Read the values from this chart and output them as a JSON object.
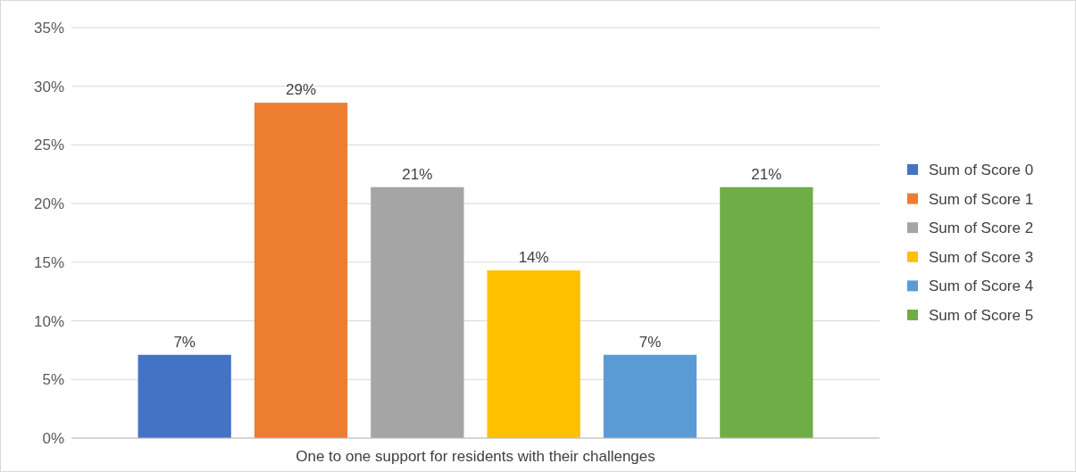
{
  "chart_data": {
    "type": "bar",
    "categories": [
      "One to one support for residents with their challenges"
    ],
    "series": [
      {
        "name": "Sum of Score 0",
        "color": "#4472c4",
        "values": [
          7.1
        ],
        "value_labels": [
          "7%"
        ]
      },
      {
        "name": "Sum of Score 1",
        "color": "#ed7d31",
        "values": [
          28.6
        ],
        "value_labels": [
          "29%"
        ]
      },
      {
        "name": "Sum of Score 2",
        "color": "#a5a5a5",
        "values": [
          21.4
        ],
        "value_labels": [
          "21%"
        ]
      },
      {
        "name": "Sum of Score 3",
        "color": "#ffc000",
        "values": [
          14.3
        ],
        "value_labels": [
          "14%"
        ]
      },
      {
        "name": "Sum of Score 4",
        "color": "#5b9bd5",
        "values": [
          7.1
        ],
        "value_labels": [
          "7%"
        ]
      },
      {
        "name": "Sum of Score 5",
        "color": "#70ad47",
        "values": [
          21.4
        ],
        "value_labels": [
          "21%"
        ]
      }
    ],
    "ylim": [
      0,
      35
    ],
    "yticks": [
      {
        "value": 0,
        "label": "0%"
      },
      {
        "value": 5,
        "label": "5%"
      },
      {
        "value": 10,
        "label": "10%"
      },
      {
        "value": 15,
        "label": "15%"
      },
      {
        "value": 20,
        "label": "20%"
      },
      {
        "value": 25,
        "label": "25%"
      },
      {
        "value": 30,
        "label": "30%"
      },
      {
        "value": 35,
        "label": "35%"
      }
    ],
    "grid": "y",
    "legend": "right"
  }
}
